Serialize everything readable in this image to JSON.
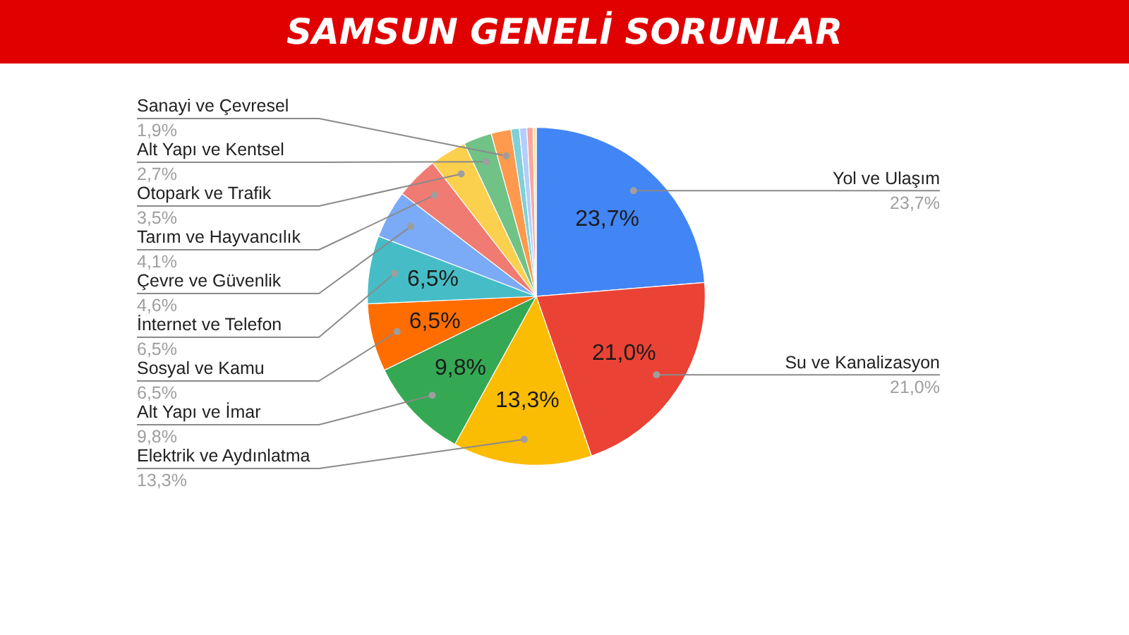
{
  "chart_data": {
    "type": "pie",
    "title": "SAMSUN GENELİ SORUNLAR",
    "categories": [
      "Yol ve Ulaşım",
      "Su ve Kanalizasyon",
      "Elektrik ve Aydınlatma",
      "Alt Yapı ve İmar",
      "Sosyal ve Kamu",
      "İnternet ve Telefon",
      "Çevre ve Güvenlik",
      "Tarım ve Hayvancılık",
      "Otopark ve Trafik",
      "Alt Yapı ve Kentsel",
      "Sanayi ve Çevresel",
      null,
      null,
      null,
      null
    ],
    "values": [
      23.7,
      21.0,
      13.3,
      9.8,
      6.5,
      6.5,
      4.6,
      4.1,
      3.5,
      2.7,
      1.9,
      0.8,
      0.7,
      0.6,
      0.3
    ],
    "colors": [
      "#4285f4",
      "#ea4335",
      "#fbbc04",
      "#34a853",
      "#ff6d01",
      "#46bdc6",
      "#7baaf7",
      "#f07b72",
      "#fcd04f",
      "#71c287",
      "#ff994d",
      "#7ed1d7",
      "#b3cefb",
      "#f7a7a0",
      "#fde49b"
    ],
    "value_labels": [
      "23,7%",
      "21,0%",
      "13,3%",
      "9,8%",
      "6,5%",
      "6,5%",
      "4,6%",
      "4,1%",
      "3,5%",
      "2,7%",
      "1,9%",
      null,
      null,
      null,
      null
    ]
  }
}
